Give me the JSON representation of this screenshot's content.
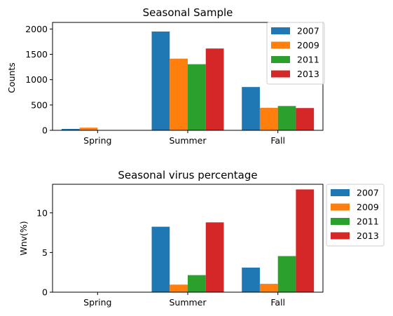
{
  "chart_data": [
    {
      "type": "bar",
      "title": "Seasonal Sample",
      "xlabel": "",
      "ylabel": "Counts",
      "categories": [
        "Spring",
        "Summer",
        "Fall"
      ],
      "ylim": [
        0,
        2130
      ],
      "yticks": [
        0,
        500,
        1000,
        1500,
        2000
      ],
      "legend_position": "upper-right",
      "series": [
        {
          "name": "2007",
          "color": "#1f77b4",
          "values": [
            28,
            1950,
            855
          ]
        },
        {
          "name": "2009",
          "color": "#ff7f0e",
          "values": [
            52,
            1415,
            445
          ]
        },
        {
          "name": "2011",
          "color": "#2ca02c",
          "values": [
            0,
            1305,
            480
          ]
        },
        {
          "name": "2013",
          "color": "#d62728",
          "values": [
            0,
            1615,
            440
          ]
        }
      ]
    },
    {
      "type": "bar",
      "title": "Seasonal virus percentage",
      "xlabel": "",
      "ylabel": "Wnv(%)",
      "categories": [
        "Spring",
        "Summer",
        "Fall"
      ],
      "ylim": [
        0,
        13.6
      ],
      "yticks": [
        0,
        5,
        10
      ],
      "legend_position": "outside-right",
      "series": [
        {
          "name": "2007",
          "color": "#1f77b4",
          "values": [
            0,
            8.25,
            3.1
          ]
        },
        {
          "name": "2009",
          "color": "#ff7f0e",
          "values": [
            0,
            0.95,
            1.05
          ]
        },
        {
          "name": "2011",
          "color": "#2ca02c",
          "values": [
            0,
            2.15,
            4.55
          ]
        },
        {
          "name": "2013",
          "color": "#d62728",
          "values": [
            0,
            8.8,
            12.95
          ]
        }
      ]
    }
  ]
}
